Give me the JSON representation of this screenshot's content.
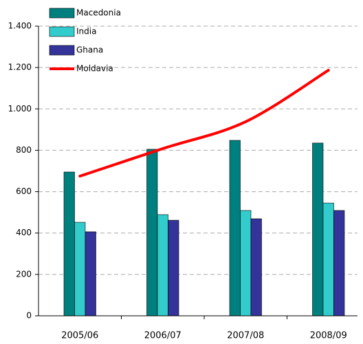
{
  "chart_data": {
    "type": "bar",
    "categories": [
      "2005/06",
      "2006/07",
      "2007/08",
      "2008/09"
    ],
    "series": [
      {
        "name": "Macedonia",
        "color": "#007f7f",
        "values": [
          695,
          805,
          848,
          835
        ]
      },
      {
        "name": "India",
        "color": "#33cccc",
        "values": [
          452,
          489,
          509,
          545
        ]
      },
      {
        "name": "Ghana",
        "color": "#333399",
        "values": [
          406,
          462,
          469,
          509
        ]
      },
      {
        "name": "Moldavia",
        "color": "#ff0000",
        "type": "line",
        "values": [
          675,
          808,
          938,
          1187
        ]
      }
    ],
    "ylim": [
      0,
      1400
    ],
    "yticks": [
      0,
      200,
      400,
      600,
      800,
      {
        "value": 1000,
        "label": "1.000"
      },
      {
        "value": 1200,
        "label": "1.200"
      },
      {
        "value": 1400,
        "label": "1.400"
      }
    ],
    "grid": true,
    "legend": "top-left"
  }
}
